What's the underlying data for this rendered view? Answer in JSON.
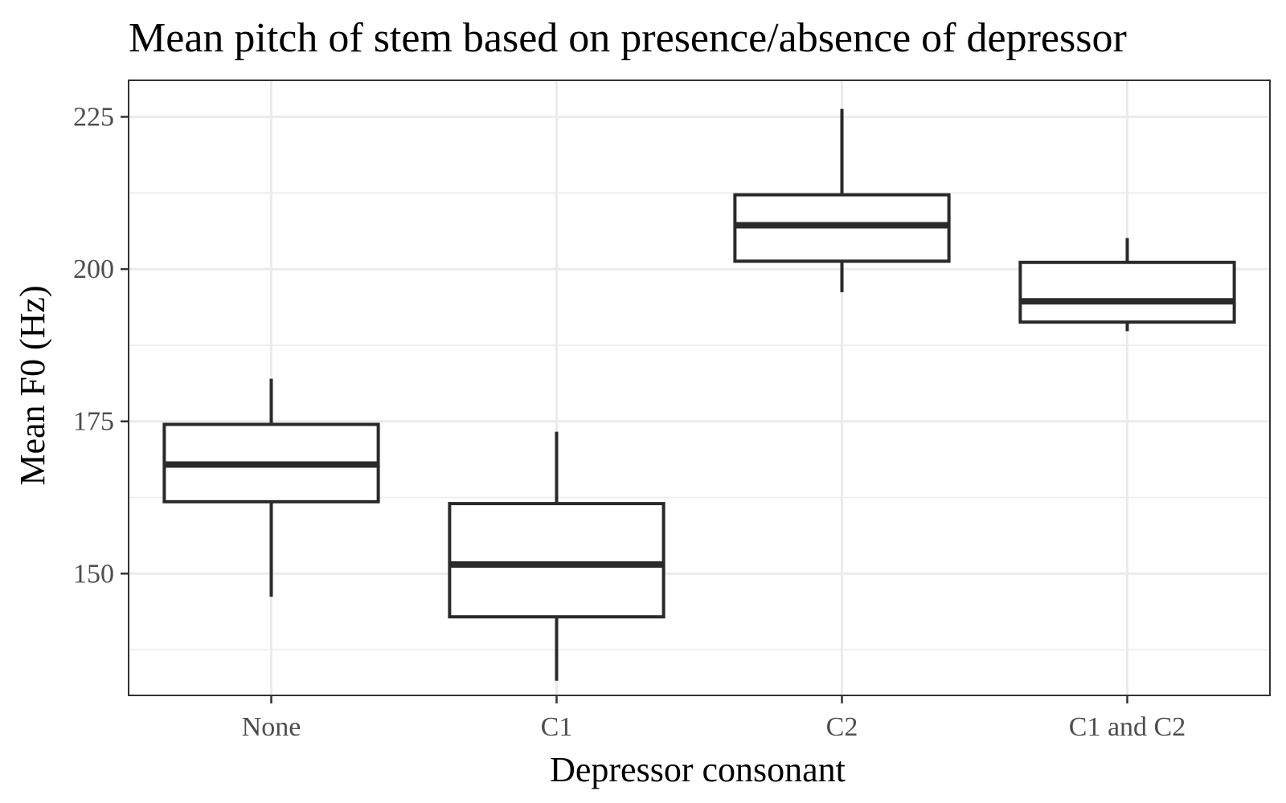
{
  "chart_data": {
    "type": "boxplot",
    "title": "Mean pitch of stem based on presence/absence of depressor",
    "xlabel": "Depressor consonant",
    "ylabel": "Mean F0 (Hz)",
    "ylim": [
      130,
      231
    ],
    "yticks": [
      150,
      175,
      200,
      225
    ],
    "yticks_minor": [
      137.5,
      162.5,
      187.5,
      212.5
    ],
    "grid": true,
    "categories": [
      "None",
      "C1",
      "C2",
      "C1 and C2"
    ],
    "boxes": [
      {
        "category": "None",
        "whisker_low": 146.2,
        "q1": 161.8,
        "median": 167.9,
        "q3": 174.5,
        "whisker_high": 182.0
      },
      {
        "category": "C1",
        "whisker_low": 132.4,
        "q1": 142.9,
        "median": 151.5,
        "q3": 161.5,
        "whisker_high": 173.3
      },
      {
        "category": "C2",
        "whisker_low": 196.2,
        "q1": 201.3,
        "median": 207.2,
        "q3": 212.2,
        "whisker_high": 226.3
      },
      {
        "category": "C1 and C2",
        "whisker_low": 189.8,
        "q1": 191.3,
        "median": 194.7,
        "q3": 201.1,
        "whisker_high": 205.1
      }
    ]
  }
}
